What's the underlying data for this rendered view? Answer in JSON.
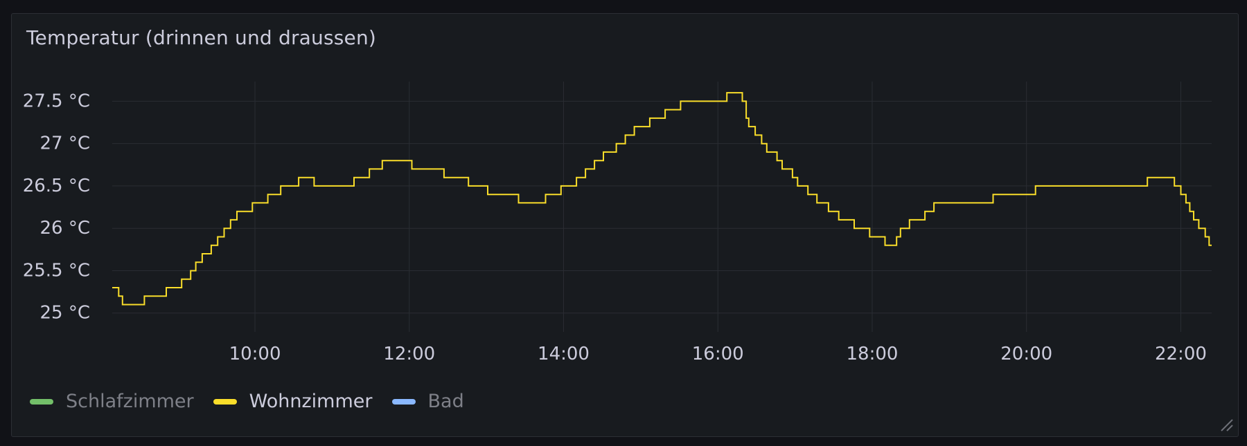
{
  "panel": {
    "title": "Temperatur (drinnen und draussen)"
  },
  "legend": [
    {
      "label": "Schlafzimmer",
      "color": "#73bf69",
      "state": "hidden"
    },
    {
      "label": "Wohnzimmer",
      "color": "#fade2a",
      "state": "active"
    },
    {
      "label": "Bad",
      "color": "#8ab8ff",
      "state": "hidden"
    }
  ],
  "chart_data": {
    "type": "line",
    "title": "Temperatur (drinnen und draussen)",
    "xlabel": "",
    "ylabel": "",
    "x_ticks": [
      "10:00",
      "12:00",
      "14:00",
      "16:00",
      "18:00",
      "20:00",
      "22:00"
    ],
    "y_ticks": [
      "25 °C",
      "25.5 °C",
      "26 °C",
      "26.5 °C",
      "27 °C",
      "27.5 °C"
    ],
    "xlim": [
      "08:09",
      "22:24"
    ],
    "ylim": [
      24.9,
      27.65
    ],
    "grid": true,
    "legend_position": "bottom-left",
    "series": [
      {
        "name": "Wohnzimmer",
        "color": "#fade2a",
        "points": [
          [
            "08:09",
            25.3
          ],
          [
            "08:14",
            25.2
          ],
          [
            "08:17",
            25.1
          ],
          [
            "08:34",
            25.2
          ],
          [
            "08:51",
            25.3
          ],
          [
            "09:03",
            25.4
          ],
          [
            "09:10",
            25.5
          ],
          [
            "09:14",
            25.6
          ],
          [
            "09:19",
            25.7
          ],
          [
            "09:26",
            25.8
          ],
          [
            "09:31",
            25.9
          ],
          [
            "09:36",
            26.0
          ],
          [
            "09:41",
            26.1
          ],
          [
            "09:46",
            26.2
          ],
          [
            "09:58",
            26.3
          ],
          [
            "10:10",
            26.4
          ],
          [
            "10:20",
            26.5
          ],
          [
            "10:34",
            26.6
          ],
          [
            "10:46",
            26.5
          ],
          [
            "11:17",
            26.6
          ],
          [
            "11:29",
            26.7
          ],
          [
            "11:39",
            26.8
          ],
          [
            "12:02",
            26.7
          ],
          [
            "12:27",
            26.6
          ],
          [
            "12:46",
            26.5
          ],
          [
            "13:01",
            26.4
          ],
          [
            "13:25",
            26.3
          ],
          [
            "13:46",
            26.4
          ],
          [
            "13:58",
            26.5
          ],
          [
            "14:10",
            26.6
          ],
          [
            "14:17",
            26.7
          ],
          [
            "14:24",
            26.8
          ],
          [
            "14:31",
            26.9
          ],
          [
            "14:41",
            27.0
          ],
          [
            "14:48",
            27.1
          ],
          [
            "14:55",
            27.2
          ],
          [
            "15:07",
            27.3
          ],
          [
            "15:19",
            27.4
          ],
          [
            "15:31",
            27.5
          ],
          [
            "16:07",
            27.6
          ],
          [
            "16:19",
            27.5
          ],
          [
            "16:22",
            27.3
          ],
          [
            "16:24",
            27.2
          ],
          [
            "16:29",
            27.1
          ],
          [
            "16:34",
            27.0
          ],
          [
            "16:38",
            26.9
          ],
          [
            "16:46",
            26.8
          ],
          [
            "16:50",
            26.7
          ],
          [
            "16:58",
            26.6
          ],
          [
            "17:02",
            26.5
          ],
          [
            "17:10",
            26.4
          ],
          [
            "17:17",
            26.3
          ],
          [
            "17:26",
            26.2
          ],
          [
            "17:34",
            26.1
          ],
          [
            "17:46",
            26.0
          ],
          [
            "17:58",
            25.9
          ],
          [
            "18:10",
            25.8
          ],
          [
            "18:19",
            25.9
          ],
          [
            "18:22",
            26.0
          ],
          [
            "18:29",
            26.1
          ],
          [
            "18:41",
            26.2
          ],
          [
            "18:48",
            26.3
          ],
          [
            "19:34",
            26.4
          ],
          [
            "20:07",
            26.5
          ],
          [
            "21:34",
            26.6
          ],
          [
            "21:55",
            26.5
          ],
          [
            "22:00",
            26.4
          ],
          [
            "22:04",
            26.3
          ],
          [
            "22:07",
            26.2
          ],
          [
            "22:10",
            26.1
          ],
          [
            "22:14",
            26.0
          ],
          [
            "22:19",
            25.9
          ],
          [
            "22:22",
            25.8
          ],
          [
            "22:24",
            25.8
          ]
        ]
      }
    ]
  }
}
